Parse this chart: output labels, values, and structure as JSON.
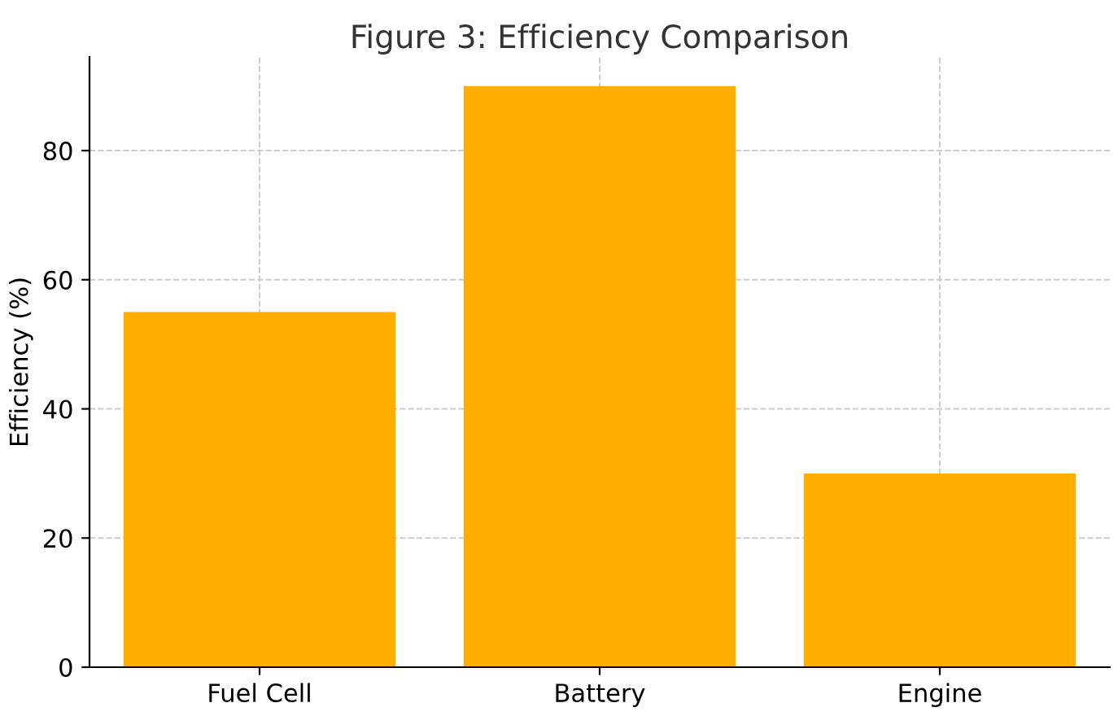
{
  "chart_data": {
    "type": "bar",
    "title": "Figure 3: Efficiency Comparison",
    "ylabel": "Efficiency (%)",
    "categories": [
      "Fuel Cell",
      "Battery",
      "Engine"
    ],
    "values": [
      55,
      90,
      30
    ],
    "color": "#ffae00",
    "ylim": [
      0,
      94.5
    ],
    "yticks": [
      0,
      20,
      40,
      60,
      80
    ],
    "grid": true
  }
}
